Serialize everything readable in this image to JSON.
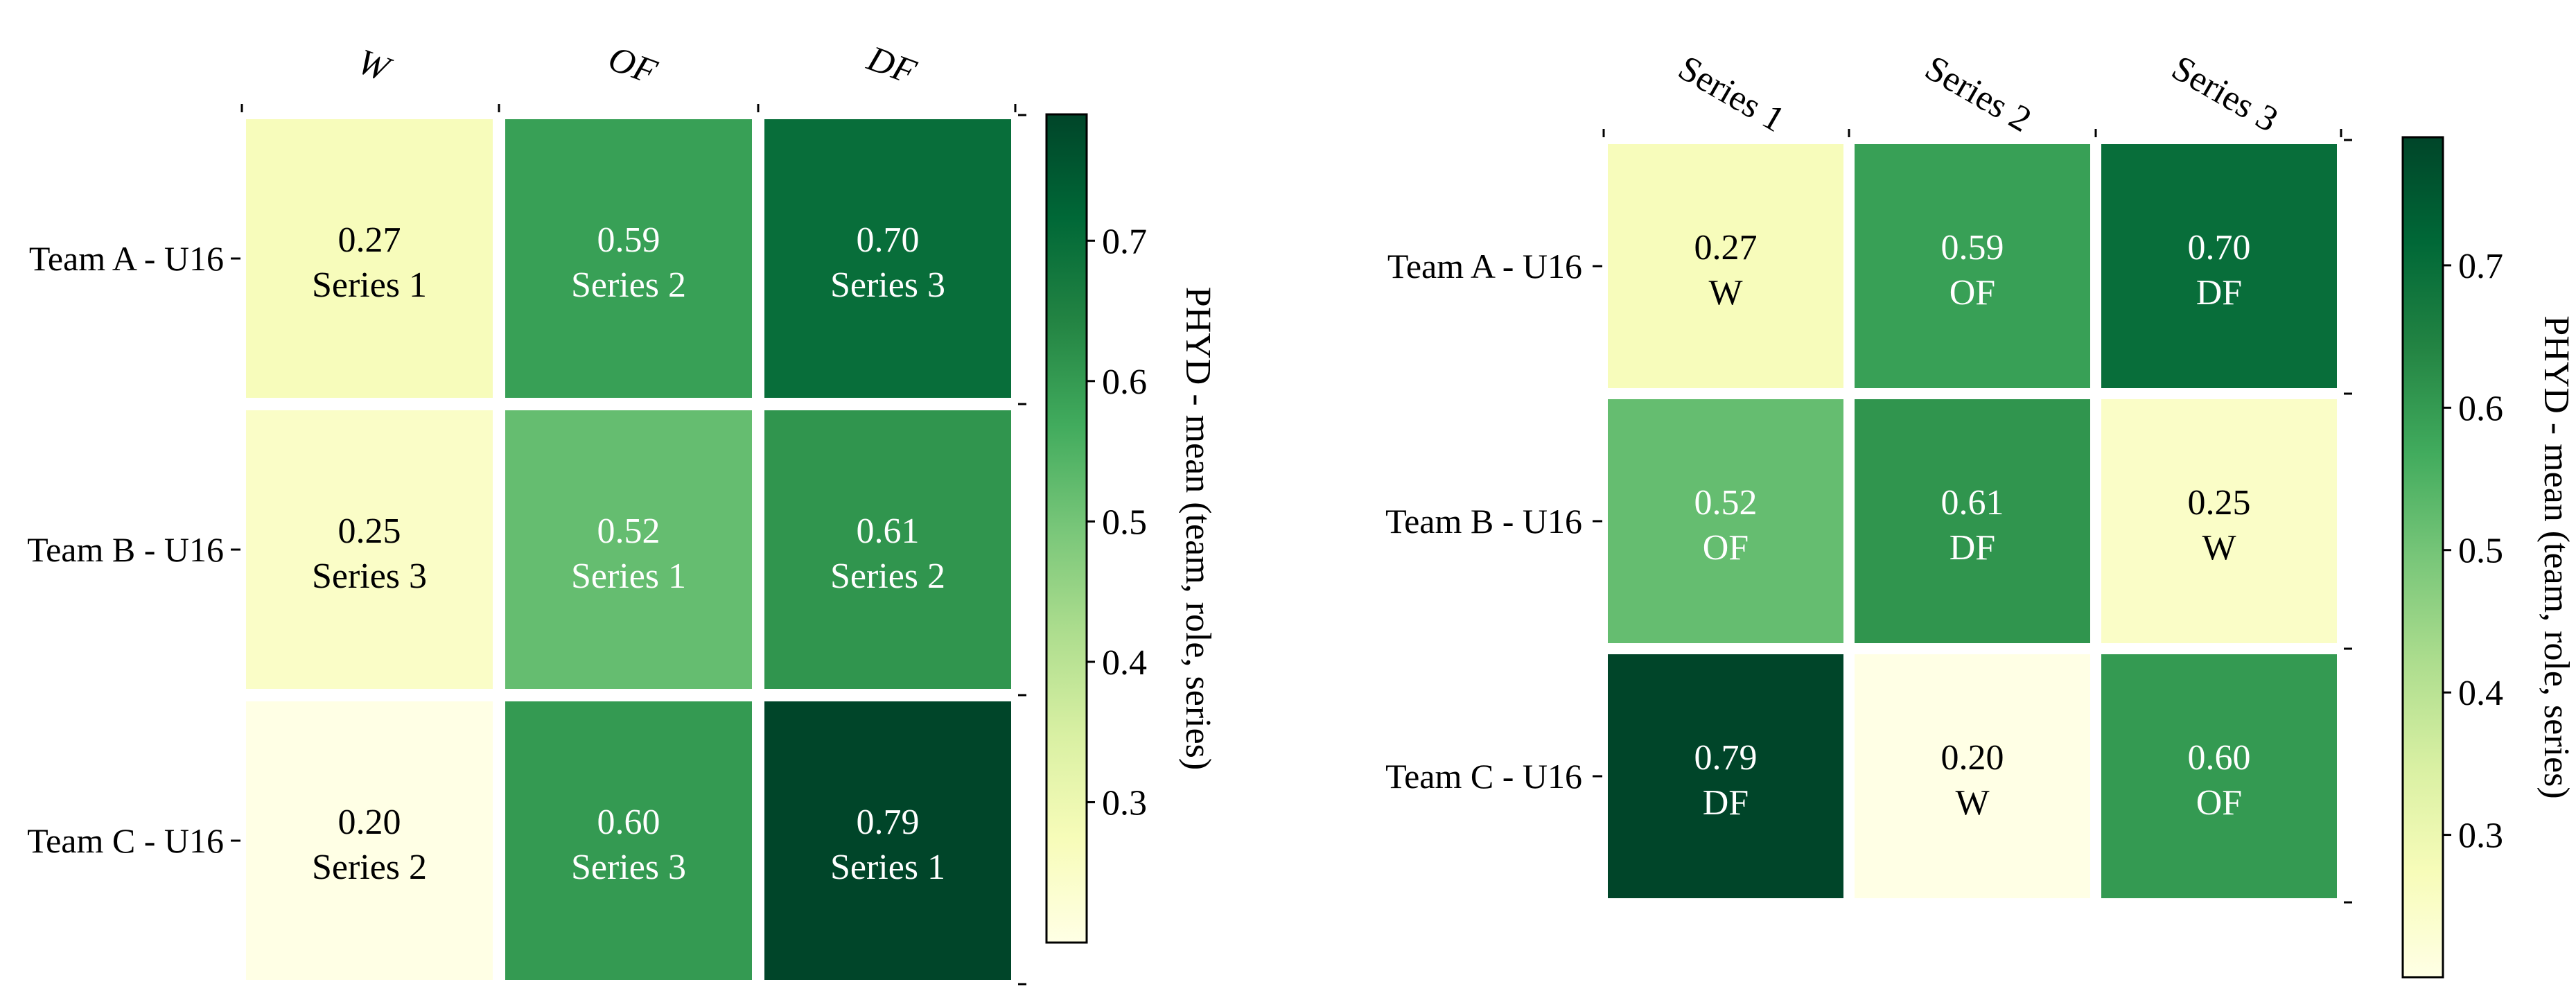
{
  "chart_data": [
    {
      "type": "heatmap",
      "title": "",
      "xlabel": "",
      "ylabel": "",
      "columns": [
        "W",
        "OF",
        "DF"
      ],
      "rows": [
        "Team A - U16",
        "Team B - U16",
        "Team C - U16"
      ],
      "cells": [
        [
          {
            "value": 0.27,
            "label": "Series 1"
          },
          {
            "value": 0.59,
            "label": "Series 2"
          },
          {
            "value": 0.7,
            "label": "Series 3"
          }
        ],
        [
          {
            "value": 0.25,
            "label": "Series 3"
          },
          {
            "value": 0.52,
            "label": "Series 1"
          },
          {
            "value": 0.61,
            "label": "Series 2"
          }
        ],
        [
          {
            "value": 0.2,
            "label": "Series 2"
          },
          {
            "value": 0.6,
            "label": "Series 3"
          },
          {
            "value": 0.79,
            "label": "Series 1"
          }
        ]
      ],
      "colorbar": {
        "label": "PHYD - mean (team, role, series)",
        "range": [
          0.2,
          0.79
        ],
        "ticks": [
          "0.3",
          "0.4",
          "0.5",
          "0.6",
          "0.7"
        ],
        "colormap": "YlGn"
      },
      "grid": false
    },
    {
      "type": "heatmap",
      "title": "",
      "xlabel": "",
      "ylabel": "",
      "columns": [
        "Series 1",
        "Series 2",
        "Series 3"
      ],
      "rows": [
        "Team A - U16",
        "Team B - U16",
        "Team C - U16"
      ],
      "cells": [
        [
          {
            "value": 0.27,
            "label": "W"
          },
          {
            "value": 0.59,
            "label": "OF"
          },
          {
            "value": 0.7,
            "label": "DF"
          }
        ],
        [
          {
            "value": 0.52,
            "label": "OF"
          },
          {
            "value": 0.61,
            "label": "DF"
          },
          {
            "value": 0.25,
            "label": "W"
          }
        ],
        [
          {
            "value": 0.79,
            "label": "DF"
          },
          {
            "value": 0.2,
            "label": "W"
          },
          {
            "value": 0.6,
            "label": "OF"
          }
        ]
      ],
      "colorbar": {
        "label": "PHYD - mean (team, role, series)",
        "range": [
          0.2,
          0.79
        ],
        "ticks": [
          "0.3",
          "0.4",
          "0.5",
          "0.6",
          "0.7"
        ],
        "colormap": "YlGn"
      },
      "grid": false
    }
  ],
  "colors": {
    "low": "#ffffe5",
    "high": "#004529",
    "axis": "#000000",
    "background": "#ffffff"
  }
}
